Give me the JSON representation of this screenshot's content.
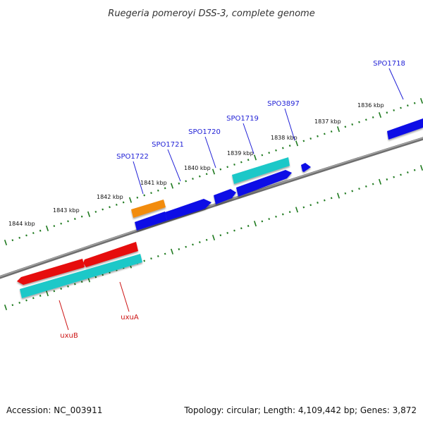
{
  "title": "Ruegeria pomeroyi DSS-3, complete genome",
  "footer": {
    "accession": "Accession: NC_003911",
    "topology": "Topology: circular; Length: 4,109,442 bp; Genes: 3,872"
  },
  "colors": {
    "backbone": "#888888",
    "tick": "#1f7a1f",
    "blue_gene": "#0a0ae6",
    "cyan_gene": "#1ec8c8",
    "red_gene": "#e60a0a",
    "orange_gene": "#f28c0a",
    "blue_label": "#1f1fd6",
    "red_label": "#cc1111"
  },
  "kbp_labels": [
    "1836 kbp",
    "1837 kbp",
    "1838 kbp",
    "1839 kbp",
    "1840 kbp",
    "1841 kbp",
    "1842 kbp",
    "1843 kbp",
    "1844 kbp"
  ],
  "gene_labels": [
    {
      "text": "SPO1718",
      "color": "blue"
    },
    {
      "text": "SPO3897",
      "color": "blue"
    },
    {
      "text": "SPO1719",
      "color": "blue"
    },
    {
      "text": "SPO1720",
      "color": "blue"
    },
    {
      "text": "SPO1721",
      "color": "blue"
    },
    {
      "text": "SPO1722",
      "color": "blue"
    },
    {
      "text": "uxuA",
      "color": "red"
    },
    {
      "text": "uxuB",
      "color": "red"
    }
  ]
}
